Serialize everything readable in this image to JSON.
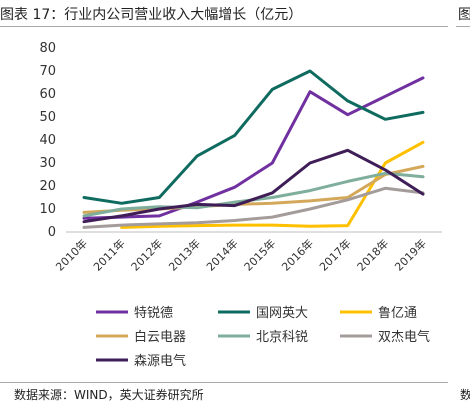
{
  "header": {
    "title": "图表 17：行业内公司营业收入大幅增长（亿元）",
    "right_fragment": "图"
  },
  "footer": {
    "source": "数据来源：WIND，英大证券研究所",
    "right_fragment": "数"
  },
  "chart_data": {
    "type": "line",
    "title": "图表 17：行业内公司营业收入大幅增长（亿元）",
    "xlabel": "",
    "ylabel": "",
    "x": [
      "2010年",
      "2011年",
      "2012年",
      "2013年",
      "2014年",
      "2015年",
      "2016年",
      "2017年",
      "2018年",
      "2019年"
    ],
    "yticks": [
      0,
      10,
      20,
      30,
      40,
      50,
      60,
      70,
      80
    ],
    "ylim": [
      0,
      80
    ],
    "grid": false,
    "legend_position": "bottom",
    "series": [
      {
        "name": "特锐德",
        "color": "#7030a0",
        "values": [
          6,
          6.5,
          7,
          13,
          19.5,
          30,
          61,
          51,
          59,
          67
        ]
      },
      {
        "name": "国网英大",
        "color": "#0f6b5f",
        "values": [
          15,
          12.5,
          15,
          33,
          42,
          62,
          70,
          57,
          49,
          52
        ]
      },
      {
        "name": "鲁亿通",
        "color": "#ffc000",
        "values": [
          null,
          2,
          2.5,
          2.8,
          3,
          3,
          2.5,
          2.8,
          30,
          39
        ]
      },
      {
        "name": "白云电器",
        "color": "#d4a85a",
        "values": [
          8.5,
          9.5,
          10,
          11,
          12,
          12.5,
          13.5,
          15,
          25,
          28.5
        ]
      },
      {
        "name": "北京科锐",
        "color": "#7fae9c",
        "values": [
          7,
          10,
          11,
          10.5,
          13,
          15,
          18,
          22,
          25.5,
          24
        ]
      },
      {
        "name": "双杰电气",
        "color": "#a49c9a",
        "values": [
          2,
          3,
          3.5,
          4,
          5,
          6.5,
          10,
          14,
          19,
          17
        ]
      },
      {
        "name": "森源电气",
        "color": "#3f1e57",
        "values": [
          4.5,
          7,
          10,
          12,
          11.5,
          17,
          30,
          35.5,
          27,
          16.5
        ]
      }
    ]
  }
}
